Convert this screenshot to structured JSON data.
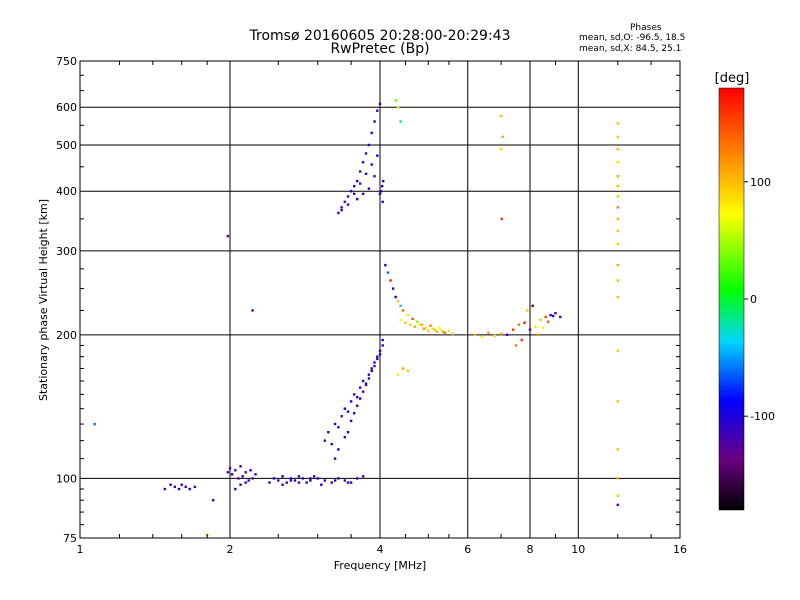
{
  "chart_data": {
    "type": "scatter",
    "title": "Tromsø 20160605 20:28:00-20:29:43",
    "subtitle": "RwPretec (Bp)",
    "xlabel": "Frequency [MHz]",
    "ylabel": "Stationary phase Virtual Height [km]",
    "x_scale": "log",
    "y_scale": "log",
    "xlim": [
      1,
      16
    ],
    "ylim": [
      75,
      750
    ],
    "x_ticks": [
      1,
      2,
      4,
      6,
      8,
      10,
      16
    ],
    "y_ticks": [
      75,
      100,
      200,
      300,
      400,
      500,
      600,
      750
    ],
    "grid": true,
    "legend": {
      "header": "Phases",
      "lines": [
        "mean, sd,O: -96.5, 18.5",
        "mean, sd,X:  84.5, 25.1"
      ]
    },
    "colorbar": {
      "label": "[deg]",
      "range": [
        -180,
        180
      ],
      "ticks": [
        100,
        0,
        -100
      ]
    },
    "series": [
      {
        "x": [
          1.07
        ],
        "y": [
          130
        ],
        "phase": [
          -60
        ]
      },
      {
        "x": [
          1.48,
          1.52,
          1.55,
          1.58,
          1.6,
          1.63,
          1.66,
          1.7
        ],
        "y": [
          95,
          97,
          96,
          95,
          97,
          96,
          95,
          96
        ],
        "phase": [
          -110,
          -105,
          -115,
          -100,
          -120,
          -110,
          -105,
          -115
        ]
      },
      {
        "x": [
          1.85,
          1.8
        ],
        "y": [
          90,
          76
        ],
        "phase": [
          -100,
          40
        ]
      },
      {
        "x": [
          1.98,
          2.0,
          2.02,
          2.05,
          2.08,
          2.1,
          2.12,
          2.15,
          2.18,
          2.2,
          2.22,
          2.25,
          2.05,
          2.1,
          2.15
        ],
        "y": [
          103,
          105,
          102,
          104,
          100,
          106,
          101,
          103,
          99,
          104,
          100,
          102,
          95,
          97,
          98
        ],
        "phase": [
          -110,
          -120,
          -100,
          -115,
          -140,
          -105,
          -95,
          -125,
          -110,
          -100,
          -130,
          -115,
          -105,
          -120,
          -110
        ]
      },
      {
        "x": [
          1.98,
          2.22
        ],
        "y": [
          322,
          225
        ],
        "phase": [
          -130,
          -140
        ]
      },
      {
        "x": [
          2.4,
          2.45,
          2.5,
          2.55,
          2.6,
          2.65,
          2.7,
          2.75,
          2.8,
          2.85,
          2.9,
          2.95,
          3.0,
          3.1,
          3.2,
          3.3,
          3.4,
          3.5,
          3.6,
          3.7,
          2.55,
          2.65,
          2.75,
          2.9,
          3.05,
          3.25,
          3.45
        ],
        "y": [
          98,
          100,
          99,
          101,
          98,
          100,
          99,
          101,
          100,
          98,
          99,
          101,
          100,
          99,
          98,
          100,
          99,
          98,
          100,
          101,
          97,
          99,
          98,
          100,
          97,
          99,
          98
        ],
        "phase": [
          -110,
          -100,
          -115,
          -105,
          -120,
          -95,
          -110,
          -100,
          -115,
          -105,
          -110,
          -120,
          -100,
          -115,
          -105,
          -110,
          -125,
          -100,
          -115,
          -110,
          -95,
          -105,
          -120,
          -110,
          -100,
          -115,
          -105
        ]
      },
      {
        "x": [
          3.1,
          3.15,
          3.2,
          3.25,
          3.3,
          3.35,
          3.4,
          3.45,
          3.5,
          3.55,
          3.6,
          3.65,
          3.7,
          3.75,
          3.8,
          3.85,
          3.9,
          3.95,
          4.0,
          4.05,
          3.3,
          3.4,
          3.5,
          3.6,
          3.7,
          3.8,
          3.9,
          4.0,
          3.25,
          3.45,
          3.55,
          3.65,
          3.75,
          3.85,
          3.95,
          4.05
        ],
        "y": [
          120,
          125,
          118,
          130,
          128,
          135,
          140,
          138,
          145,
          150,
          148,
          155,
          160,
          158,
          165,
          170,
          175,
          180,
          185,
          190,
          115,
          122,
          132,
          142,
          152,
          162,
          172,
          182,
          110,
          125,
          137,
          147,
          157,
          168,
          178,
          195
        ],
        "phase": [
          -110,
          -100,
          -120,
          -105,
          -115,
          -130,
          -95,
          -110,
          -100,
          -140,
          -115,
          -105,
          -120,
          -110,
          -100,
          -125,
          -115,
          -105,
          -110,
          -120,
          -90,
          -100,
          -110,
          -120,
          -105,
          -115,
          -130,
          -100,
          -110,
          -95,
          -105,
          -115,
          -125,
          -100,
          -110,
          -105
        ]
      },
      {
        "x": [
          3.3,
          3.35,
          3.4,
          3.45,
          3.5,
          3.55,
          3.6,
          3.65,
          3.7,
          3.75,
          3.8,
          3.85,
          3.9,
          3.95,
          4.0,
          4.05,
          3.35,
          3.45,
          3.55,
          3.65,
          3.75,
          3.85,
          3.95,
          4.02,
          4.06,
          3.6,
          3.7,
          3.8,
          3.9,
          4.0,
          4.04
        ],
        "y": [
          360,
          370,
          380,
          390,
          400,
          410,
          420,
          440,
          460,
          480,
          500,
          530,
          560,
          590,
          610,
          380,
          365,
          375,
          395,
          415,
          435,
          455,
          475,
          400,
          420,
          385,
          395,
          405,
          430,
          395,
          410
        ],
        "phase": [
          -110,
          -100,
          -120,
          -105,
          -115,
          -100,
          -110,
          -120,
          -105,
          -115,
          -100,
          -110,
          -105,
          -120,
          -110,
          -100,
          -115,
          -105,
          -110,
          -120,
          -100,
          -110,
          -105,
          -115,
          -100,
          -125,
          -110,
          -105,
          -115,
          -110,
          -100
        ]
      },
      {
        "x": [
          4.3,
          4.35,
          4.4
        ],
        "y": [
          620,
          600,
          560
        ],
        "phase": [
          30,
          60,
          -20
        ]
      },
      {
        "x": [
          4.1,
          4.15,
          4.2,
          4.25,
          4.3,
          4.35,
          4.4,
          4.45
        ],
        "y": [
          280,
          270,
          260,
          250,
          240,
          235,
          230,
          225
        ],
        "phase": [
          -100,
          -60,
          170,
          -110,
          -90,
          100,
          -40,
          140
        ]
      },
      {
        "x": [
          4.4,
          4.5,
          4.6,
          4.7,
          4.8,
          4.9,
          5.0,
          5.1,
          5.2,
          5.3,
          5.4,
          5.5,
          5.6,
          4.55,
          4.65,
          4.75,
          4.85,
          4.95,
          5.05,
          5.15,
          5.25,
          5.35,
          4.35,
          4.45,
          4.55
        ],
        "y": [
          215,
          212,
          210,
          208,
          210,
          206,
          204,
          206,
          203,
          205,
          202,
          204,
          201,
          220,
          216,
          213,
          210,
          207,
          209,
          205,
          207,
          203,
          165,
          170,
          168
        ],
        "phase": [
          80,
          100,
          90,
          110,
          70,
          120,
          95,
          85,
          105,
          75,
          130,
          90,
          100,
          60,
          150,
          40,
          110,
          80,
          125,
          95,
          70,
          115,
          80,
          110,
          95
        ]
      },
      {
        "x": [
          6.2,
          6.4,
          6.6,
          6.8,
          7.0,
          7.2,
          7.4,
          7.6,
          7.8,
          8.0,
          8.2,
          8.4,
          8.6,
          8.8,
          9.0,
          9.2,
          7.5,
          7.7,
          7.9,
          8.1,
          8.3,
          8.5,
          8.7,
          8.9
        ],
        "y": [
          200,
          198,
          202,
          199,
          201,
          200,
          205,
          210,
          212,
          205,
          208,
          215,
          218,
          220,
          222,
          218,
          190,
          195,
          225,
          230,
          200,
          207,
          213,
          219
        ],
        "phase": [
          100,
          80,
          120,
          90,
          110,
          -120,
          160,
          130,
          170,
          -140,
          60,
          100,
          150,
          -100,
          -120,
          -110,
          130,
          160,
          100,
          -150,
          120,
          80,
          140,
          -100
        ]
      },
      {
        "x": [
          7.0,
          7.05,
          7.0,
          7.02
        ],
        "y": [
          575,
          520,
          490,
          350
        ],
        "phase": [
          100,
          110,
          90,
          160
        ]
      },
      {
        "x": [
          12.0,
          12.0,
          12.0,
          12.0,
          12.0,
          12.0,
          12.0,
          12.0,
          12.0,
          12.0,
          12.0,
          12.0,
          12.0,
          12.0,
          12.0,
          12.0,
          12.0,
          12.0,
          12.0,
          12.0
        ],
        "y": [
          555,
          520,
          490,
          460,
          430,
          410,
          390,
          370,
          350,
          330,
          310,
          280,
          260,
          240,
          185,
          145,
          115,
          100,
          92,
          88
        ],
        "phase": [
          100,
          95,
          105,
          90,
          110,
          100,
          95,
          130,
          105,
          100,
          95,
          110,
          100,
          105,
          95,
          100,
          100,
          110,
          95,
          -130
        ]
      }
    ]
  }
}
